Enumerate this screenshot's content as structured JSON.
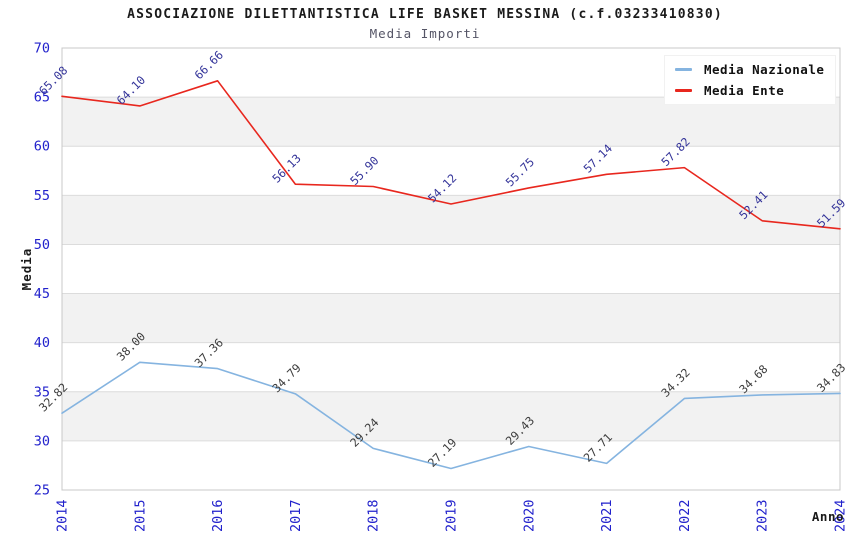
{
  "title": "ASSOCIAZIONE DILETTANTISTICA LIFE BASKET MESSINA (c.f.03233410830)",
  "subtitle": "Media Importi",
  "colors": {
    "axis_text": "#2222cc",
    "grid_line": "#dcdcdc",
    "plot_border": "#c8c8c8",
    "band_fill": "#f2f2f2",
    "title_text": "#1a1a1a",
    "subtitle_text": "#555566",
    "axis_title_text": "#1a1a1a"
  },
  "chart_data": {
    "type": "line",
    "x": [
      "2014",
      "2015",
      "2016",
      "2017",
      "2018",
      "2019",
      "2020",
      "2021",
      "2022",
      "2023",
      "2024"
    ],
    "series": [
      {
        "name": "Media Nazionale",
        "color": "#85b4e0",
        "label_color": "#3d3d3d",
        "values": [
          32.82,
          38.0,
          37.36,
          34.79,
          29.24,
          27.19,
          29.43,
          27.71,
          34.32,
          34.68,
          34.83
        ]
      },
      {
        "name": "Media Ente",
        "color": "#e8271e",
        "label_color": "#333399",
        "values": [
          65.08,
          64.1,
          66.66,
          56.13,
          55.9,
          54.12,
          55.75,
          57.14,
          57.82,
          52.41,
          51.59
        ]
      }
    ],
    "xlabel": "Anno",
    "ylabel": "Media",
    "ylim": [
      25,
      70
    ],
    "yticks": [
      25,
      30,
      35,
      40,
      45,
      50,
      55,
      60,
      65,
      70
    ],
    "grid": "horizontal",
    "band_fill_ranges": [
      [
        30,
        35
      ],
      [
        40,
        45
      ],
      [
        50,
        55
      ],
      [
        60,
        65
      ]
    ],
    "legend_position": "top-right",
    "value_label_decimals": 2
  }
}
